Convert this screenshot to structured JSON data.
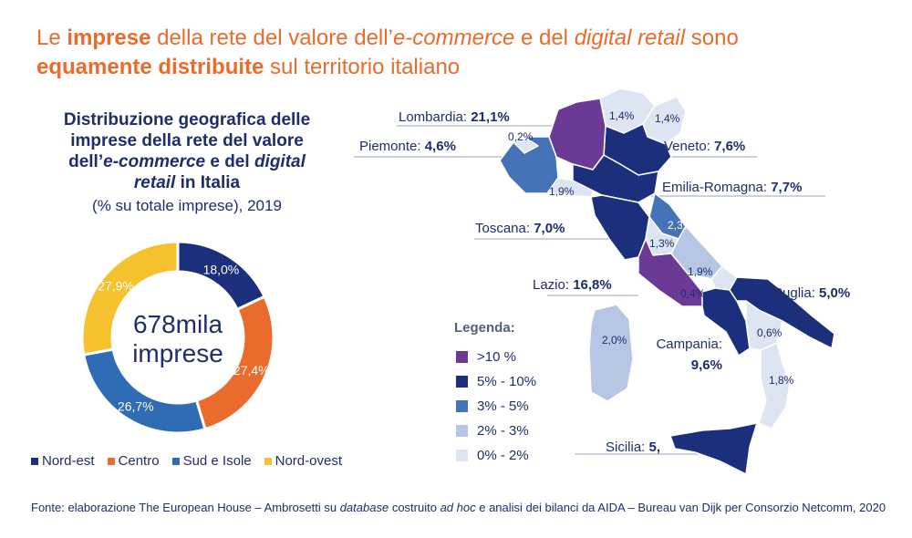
{
  "headline": {
    "p1": "Le ",
    "b1": "imprese",
    "p2": " della rete del valore dell’",
    "i1": "e-commerce",
    "p3": " e del ",
    "i2": "digital retail",
    "p4": " sono",
    "b2": "equamente distribuite",
    "p5": " sul territorio italiano"
  },
  "donut": {
    "title_l1": "Distribuzione geografica delle",
    "title_l2": "imprese della rete del valore",
    "title_l3a": "dell’",
    "title_l3b": "e-commerce",
    "title_l3c": " e del ",
    "title_l3d": "digital",
    "title_l4a": "retail",
    "title_l4b": " in Italia",
    "subtitle": "(% su totale imprese), 2019",
    "center_l1": "678mila",
    "center_l2": "imprese"
  },
  "chart_data": [
    {
      "type": "pie",
      "subtype": "donut",
      "title": "Distribuzione geografica delle imprese della rete del valore dell’e-commerce e del digital retail in Italia",
      "subtitle": "(% su totale imprese), 2019",
      "categories": [
        "Nord-est",
        "Centro",
        "Sud e Isole",
        "Nord-ovest"
      ],
      "values": [
        18.0,
        27.4,
        26.7,
        27.9
      ],
      "labels": [
        "18,0%",
        "27,4%",
        "26,7%",
        "27,9%"
      ],
      "colors": [
        "#1c2f7d",
        "#ea6b2c",
        "#2e6db4",
        "#f6c12e"
      ],
      "legend_position": "bottom"
    },
    {
      "type": "map",
      "regions": [
        {
          "name": "Lombardia",
          "value": "21,1%",
          "class": ">10 %"
        },
        {
          "name": "Piemonte",
          "value": "4,6%",
          "class": "3% - 5%"
        },
        {
          "name": "Veneto",
          "value": "7,6%",
          "class": "5% - 10%"
        },
        {
          "name": "Emilia-Romagna",
          "value": "7,7%",
          "class": "5% - 10%"
        },
        {
          "name": "Toscana",
          "value": "7,0%",
          "class": "5% - 10%"
        },
        {
          "name": "Lazio",
          "value": "16,8%",
          "class": ">10 %"
        },
        {
          "name": "Puglia",
          "value": "5,0%",
          "class": "5% - 10%"
        },
        {
          "name": "Campania",
          "value": "9,6%",
          "class": "5% - 10%"
        },
        {
          "name": "Sicilia",
          "value": "5,",
          "class": "5% - 10%"
        }
      ],
      "small_values": [
        "1,4%",
        "1,4%",
        "0,2%",
        "1,9%",
        "2,3%",
        "1,3%",
        "1,9%",
        "0,4%",
        "0,6%",
        "2,0%",
        "1,8%"
      ],
      "legend_title": "Legenda:",
      "legend": [
        {
          "label": ">10 %",
          "color": "#6b3a96"
        },
        {
          "label": "5% - 10%",
          "color": "#1c2f7d"
        },
        {
          "label": "3% - 5%",
          "color": "#4573b8"
        },
        {
          "label": "2% - 3%",
          "color": "#b7c6e4"
        },
        {
          "label": "0% - 2%",
          "color": "#dde4f2"
        }
      ]
    }
  ],
  "map_labels": {
    "lombardia": {
      "name": "Lombardia: ",
      "value": "21,1%"
    },
    "piemonte": {
      "name": "Piemonte: ",
      "value": "4,6%"
    },
    "veneto": {
      "name": "Veneto: ",
      "value": "7,6%"
    },
    "emilia": {
      "name": "Emilia-Romagna: ",
      "value": "7,7%"
    },
    "toscana": {
      "name": "Toscana: ",
      "value": "7,0%"
    },
    "lazio": {
      "name": "Lazio: ",
      "value": "16,8%"
    },
    "puglia": {
      "name": "Puglia: ",
      "value": "5,0%"
    },
    "campania": {
      "name": "Campania:",
      "value": "9,6%"
    },
    "sicilia": {
      "name": "Sicilia: ",
      "value": "5,"
    }
  },
  "small_labels": {
    "vda": "0,2%",
    "trentino": "1,4%",
    "friuli": "1,4%",
    "liguria": "1,9%",
    "marche": "2,3%",
    "umbria": "1,3%",
    "abruzzo": "1,9%",
    "molise": "0,4%",
    "basilicata": "0,6%",
    "sardegna": "2,0%",
    "calabria": "1,8%"
  },
  "source": {
    "p1": "Fonte: elaborazione The European House – Ambrosetti su ",
    "i1": "database",
    "p2": " costruito ",
    "i2": "ad hoc",
    "p3": " e analisi dei bilanci da AIDA – Bureau van Dijk per Consorzio Netcomm, 2020"
  }
}
